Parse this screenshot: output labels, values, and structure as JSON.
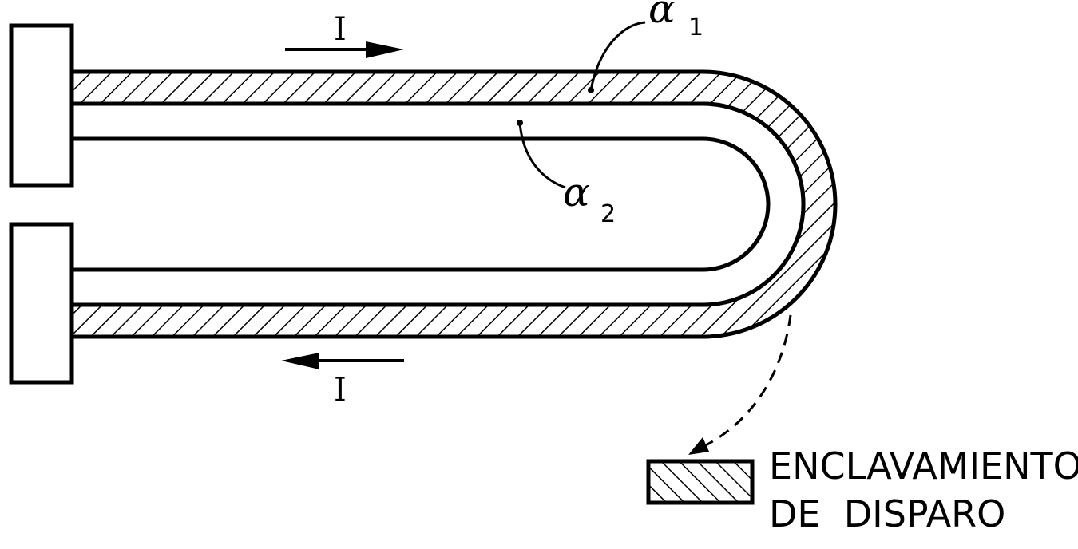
{
  "diagram": {
    "current_label_top": "I",
    "current_label_bottom": "I",
    "alpha1": {
      "symbol": "α",
      "subscript": "1"
    },
    "alpha2": {
      "symbol": "α",
      "subscript": "2"
    },
    "latch_label_line1": "ENCLAVAMIENTO",
    "latch_label_line2": "DE  DISPARO"
  }
}
